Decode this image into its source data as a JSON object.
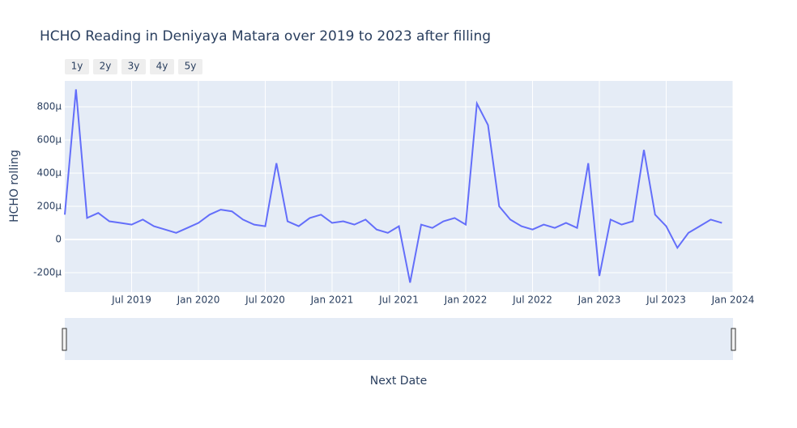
{
  "chart_data": {
    "type": "line",
    "title": "HCHO Reading in Deniyaya Matara over 2019 to 2023 after filling",
    "x_label": "Next Date",
    "y_label": "HCHO rolling",
    "range_buttons": [
      "1y",
      "2y",
      "3y",
      "4y",
      "5y"
    ],
    "x": [
      "2019-01",
      "2019-02",
      "2019-03",
      "2019-04",
      "2019-05",
      "2019-06",
      "2019-07",
      "2019-08",
      "2019-09",
      "2019-10",
      "2019-11",
      "2019-12",
      "2020-01",
      "2020-02",
      "2020-03",
      "2020-04",
      "2020-05",
      "2020-06",
      "2020-07",
      "2020-08",
      "2020-09",
      "2020-10",
      "2020-11",
      "2020-12",
      "2021-01",
      "2021-02",
      "2021-03",
      "2021-04",
      "2021-05",
      "2021-06",
      "2021-07",
      "2021-08",
      "2021-09",
      "2021-10",
      "2021-11",
      "2021-12",
      "2022-01",
      "2022-02",
      "2022-03",
      "2022-04",
      "2022-05",
      "2022-06",
      "2022-07",
      "2022-08",
      "2022-09",
      "2022-10",
      "2022-11",
      "2022-12",
      "2023-01",
      "2023-02",
      "2023-03",
      "2023-04",
      "2023-05",
      "2023-06",
      "2023-07",
      "2023-08",
      "2023-09",
      "2023-10",
      "2023-11",
      "2023-12"
    ],
    "series": [
      {
        "name": "HCHO rolling",
        "color": "#636efa",
        "values": [
          0.00015,
          0.000905,
          0.00013,
          0.00016,
          0.00011,
          0.0001,
          9e-05,
          0.00012,
          8e-05,
          6e-05,
          4e-05,
          7e-05,
          0.0001,
          0.00015,
          0.00018,
          0.00017,
          0.00012,
          9e-05,
          8e-05,
          0.00046,
          0.00011,
          8e-05,
          0.00013,
          0.00015,
          0.0001,
          0.00011,
          9e-05,
          0.00012,
          6e-05,
          4e-05,
          8e-05,
          -0.00026,
          9e-05,
          7e-05,
          0.00011,
          0.00013,
          9e-05,
          0.00082,
          0.00069,
          0.0002,
          0.00012,
          8e-05,
          6e-05,
          9e-05,
          7e-05,
          0.0001,
          7e-05,
          0.00046,
          -0.00022,
          0.00012,
          9e-05,
          0.00011,
          0.00054,
          0.00015,
          8e-05,
          -5e-05,
          4e-05,
          8e-05,
          0.00012,
          0.0001
        ]
      }
    ],
    "xlim": [
      "2019-01",
      "2024-01"
    ],
    "xticks": [
      {
        "value": "2019-07",
        "label": "Jul 2019"
      },
      {
        "value": "2020-01",
        "label": "Jan 2020"
      },
      {
        "value": "2020-07",
        "label": "Jul 2020"
      },
      {
        "value": "2021-01",
        "label": "Jan 2021"
      },
      {
        "value": "2021-07",
        "label": "Jul 2021"
      },
      {
        "value": "2022-01",
        "label": "Jan 2022"
      },
      {
        "value": "2022-07",
        "label": "Jul 2022"
      },
      {
        "value": "2023-01",
        "label": "Jan 2023"
      },
      {
        "value": "2023-07",
        "label": "Jul 2023"
      },
      {
        "value": "2024-01",
        "label": "Jan 2024"
      }
    ],
    "ylim": [
      -0.000317,
      0.000956
    ],
    "yticks": [
      {
        "value": -0.0002,
        "label": "-200µ"
      },
      {
        "value": 0,
        "label": "0"
      },
      {
        "value": 0.0002,
        "label": "200µ"
      },
      {
        "value": 0.0004,
        "label": "400µ"
      },
      {
        "value": 0.0006,
        "label": "600µ"
      },
      {
        "value": 0.0008,
        "label": "800µ"
      }
    ],
    "grid": true
  }
}
